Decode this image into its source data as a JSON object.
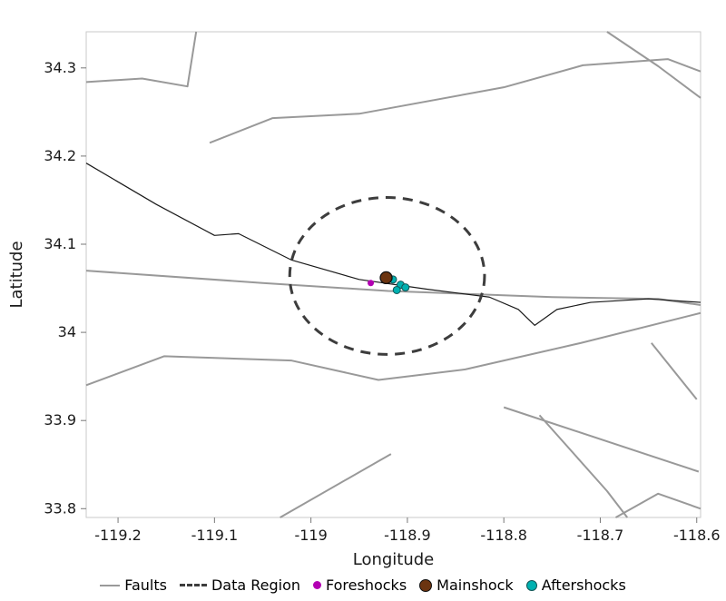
{
  "chart_data": {
    "type": "scatter",
    "title": "",
    "xlabel": "Longitude",
    "ylabel": "Latitude",
    "xlim": [
      -119.233,
      -118.596
    ],
    "ylim": [
      33.79,
      34.341
    ],
    "grid": false,
    "legend_position": "bottom",
    "frame_color": "#c9c9c9",
    "tick_color": "#777777",
    "text_color": "#1a1a1a",
    "xticks": {
      "values": [
        -119.2,
        -119.1,
        -119.0,
        -118.9,
        -118.8,
        -118.7,
        -118.6
      ],
      "labels": [
        "-119.2",
        "-119.1",
        "-119",
        "-118.9",
        "-118.8",
        "-118.7",
        "-118.6"
      ]
    },
    "yticks": {
      "values": [
        33.8,
        33.9,
        34.0,
        34.1,
        34.2,
        34.3
      ],
      "labels": [
        "33.8",
        "33.9",
        "34",
        "34.1",
        "34.2",
        "34.3"
      ]
    },
    "series": {
      "faults": {
        "label": "Faults",
        "color": "#999999",
        "width": 2,
        "polylines": [
          [
            [
              -119.233,
              34.284
            ],
            [
              -119.175,
              34.288
            ],
            [
              -119.128,
              34.279
            ],
            [
              -119.119,
              34.341
            ]
          ],
          [
            [
              -119.105,
              34.215
            ],
            [
              -119.04,
              34.243
            ],
            [
              -118.95,
              34.248
            ],
            [
              -118.8,
              34.278
            ],
            [
              -118.718,
              34.303
            ],
            [
              -118.63,
              34.31
            ],
            [
              -118.596,
              34.296
            ]
          ],
          [
            [
              -118.693,
              34.341
            ],
            [
              -118.64,
              34.302
            ],
            [
              -118.596,
              34.266
            ]
          ],
          [
            [
              -119.233,
              34.07
            ],
            [
              -119.05,
              34.056
            ],
            [
              -118.92,
              34.047
            ],
            [
              -118.75,
              34.04
            ],
            [
              -118.64,
              34.038
            ],
            [
              -118.596,
              34.031
            ]
          ],
          [
            [
              -119.233,
              33.94
            ],
            [
              -119.152,
              33.973
            ],
            [
              -119.02,
              33.968
            ],
            [
              -118.93,
              33.946
            ],
            [
              -118.84,
              33.958
            ],
            [
              -118.72,
              33.988
            ],
            [
              -118.596,
              34.022
            ]
          ],
          [
            [
              -119.032,
              33.79
            ],
            [
              -118.917,
              33.862
            ]
          ],
          [
            [
              -118.8,
              33.915
            ],
            [
              -118.598,
              33.842
            ]
          ],
          [
            [
              -118.763,
              33.906
            ],
            [
              -118.693,
              33.82
            ],
            [
              -118.672,
              33.79
            ]
          ],
          [
            [
              -118.647,
              33.988
            ],
            [
              -118.6,
              33.924
            ]
          ],
          [
            [
              -118.684,
              33.79
            ],
            [
              -118.64,
              33.817
            ],
            [
              -118.596,
              33.8
            ]
          ]
        ]
      },
      "coastline": {
        "color": "#1a1a1a",
        "width": 1.2,
        "polyline": [
          [
            -119.233,
            34.192
          ],
          [
            -119.16,
            34.145
          ],
          [
            -119.1,
            34.11
          ],
          [
            -119.075,
            34.112
          ],
          [
            -119.02,
            34.082
          ],
          [
            -118.95,
            34.06
          ],
          [
            -118.88,
            34.049
          ],
          [
            -118.815,
            34.04
          ],
          [
            -118.785,
            34.026
          ],
          [
            -118.768,
            34.008
          ],
          [
            -118.745,
            34.026
          ],
          [
            -118.71,
            34.034
          ],
          [
            -118.65,
            34.038
          ],
          [
            -118.596,
            34.034
          ]
        ]
      },
      "data_region": {
        "label": "Data Region",
        "color": "#3d3d3d",
        "center": [
          -118.921,
          34.064
        ],
        "rx": 0.101,
        "ry": 0.089,
        "dash": "11 8",
        "width": 3
      },
      "foreshocks": {
        "label": "Foreshocks",
        "color": "#b300b3",
        "radius": 3.5,
        "points": [
          [
            -118.938,
            34.056
          ]
        ]
      },
      "mainshock": {
        "label": "Mainshock",
        "color": "#6b3410",
        "stroke": "#111111",
        "radius": 6.5,
        "points": [
          [
            -118.922,
            34.062
          ]
        ]
      },
      "aftershocks": {
        "label": "Aftershocks",
        "color": "#00b0b0",
        "stroke": "#115555",
        "radius": 4,
        "points": [
          [
            -118.915,
            34.06
          ],
          [
            -118.907,
            34.054
          ],
          [
            -118.902,
            34.051
          ],
          [
            -118.911,
            34.048
          ]
        ]
      }
    }
  }
}
